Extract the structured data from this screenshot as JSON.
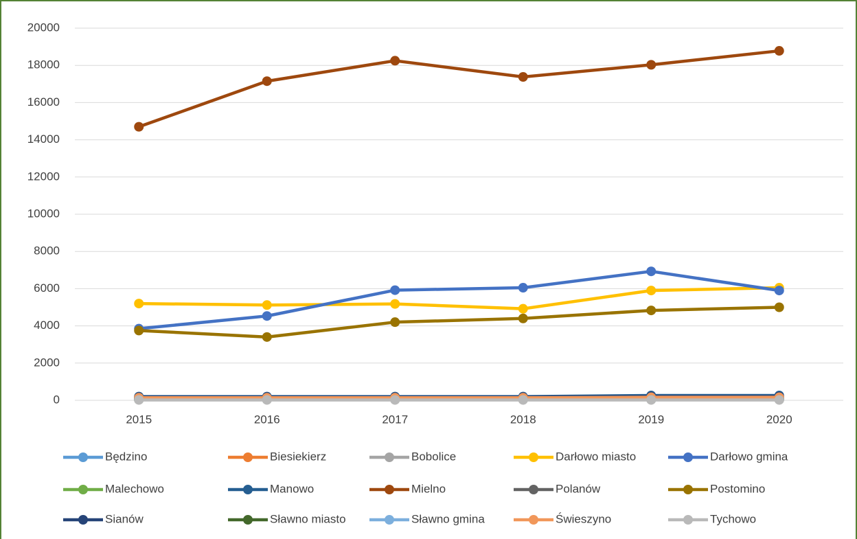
{
  "chart_data": {
    "type": "line",
    "categories": [
      "2015",
      "2016",
      "2017",
      "2018",
      "2019",
      "2020"
    ],
    "ylim": [
      0,
      20000
    ],
    "yticks": [
      0,
      2000,
      4000,
      6000,
      8000,
      10000,
      12000,
      14000,
      16000,
      18000,
      20000
    ],
    "grid": true,
    "legend": "bottom",
    "series": [
      {
        "name": "Będzino",
        "color": "#5b9bd5",
        "values": [
          120,
          120,
          120,
          120,
          150,
          150
        ]
      },
      {
        "name": "Biesiekierz",
        "color": "#ed7d31",
        "values": [
          80,
          80,
          80,
          80,
          90,
          90
        ]
      },
      {
        "name": "Bobolice",
        "color": "#a5a5a5",
        "values": [
          40,
          40,
          40,
          40,
          40,
          40
        ]
      },
      {
        "name": "Darłowo miasto",
        "color": "#ffc000",
        "values": [
          5200,
          5120,
          5180,
          4920,
          5900,
          6050
        ]
      },
      {
        "name": "Darłowo gmina",
        "color": "#4472c4",
        "values": [
          3850,
          4530,
          5920,
          6050,
          6930,
          5900
        ]
      },
      {
        "name": "Malechowo",
        "color": "#70ad47",
        "values": [
          60,
          60,
          60,
          60,
          70,
          70
        ]
      },
      {
        "name": "Manowo",
        "color": "#255e91",
        "values": [
          200,
          200,
          200,
          200,
          260,
          260
        ]
      },
      {
        "name": "Mielno",
        "color": "#9e480e",
        "values": [
          14700,
          17150,
          18250,
          17380,
          18030,
          18780
        ]
      },
      {
        "name": "Polanów",
        "color": "#636363",
        "values": [
          100,
          100,
          100,
          100,
          110,
          110
        ]
      },
      {
        "name": "Postomino",
        "color": "#997300",
        "values": [
          3750,
          3400,
          4200,
          4400,
          4830,
          5000
        ]
      },
      {
        "name": "Sianów",
        "color": "#264478",
        "values": [
          170,
          170,
          170,
          170,
          200,
          200
        ]
      },
      {
        "name": "Sławno miasto",
        "color": "#43682b",
        "values": [
          30,
          30,
          30,
          30,
          30,
          30
        ]
      },
      {
        "name": "Sławno gmina",
        "color": "#7cafdd",
        "values": [
          50,
          50,
          50,
          50,
          50,
          50
        ]
      },
      {
        "name": "Świeszyno",
        "color": "#f1975a",
        "values": [
          140,
          140,
          140,
          140,
          160,
          160
        ]
      },
      {
        "name": "Tychowo",
        "color": "#b9b9b9",
        "values": [
          20,
          20,
          20,
          20,
          20,
          20
        ]
      }
    ]
  }
}
